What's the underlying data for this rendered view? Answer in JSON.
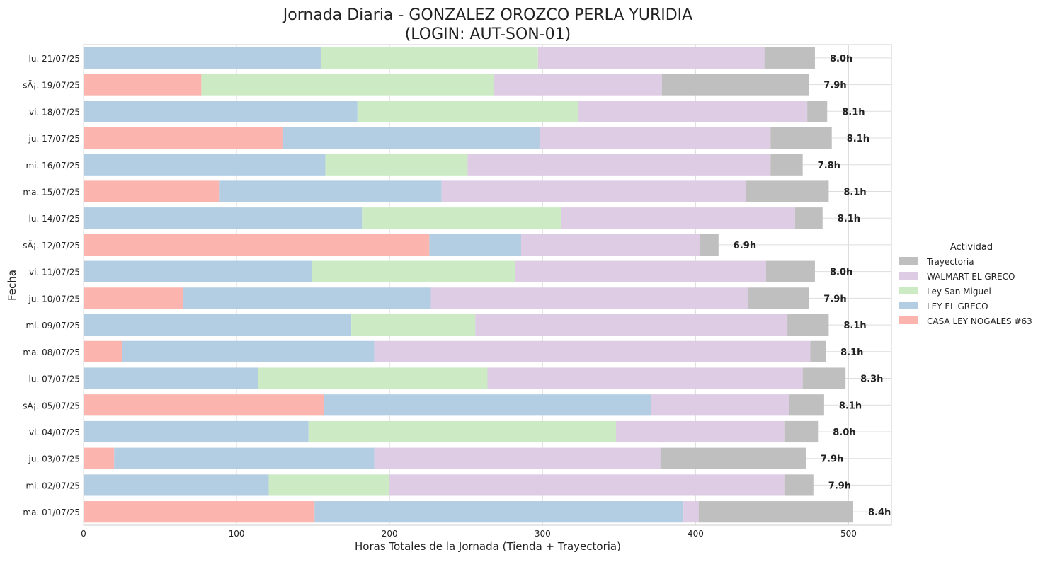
{
  "chart_data": {
    "type": "bar",
    "orientation": "horizontal",
    "stacked": true,
    "title_line1": "Jornada Diaria - GONZALEZ OROZCO PERLA YURIDIA",
    "title_line2": "(LOGIN: AUT-SON-01)",
    "xlabel": "Horas Totales de la Jornada (Tienda + Trayectoria)",
    "ylabel": "Fecha",
    "xlim": [
      0,
      528
    ],
    "xticks": [
      0,
      100,
      200,
      300,
      400,
      500
    ],
    "grid": true,
    "legend": {
      "title": "Actividad",
      "placement": "center-right outside",
      "items": [
        "Trayectoria",
        "WALMART EL GRECO",
        "Ley San Miguel",
        "LEY EL GRECO",
        "CASA LEY NOGALES #63"
      ]
    },
    "colors": {
      "CASA LEY NOGALES #63": "#fbb4ae",
      "LEY EL GRECO": "#b3cde3",
      "Ley San Miguel": "#ccebc5",
      "WALMART EL GRECO": "#decbe4",
      "Trayectoria": "#bfbfbf"
    },
    "series_order": [
      "CASA LEY NOGALES #63",
      "LEY EL GRECO",
      "Ley San Miguel",
      "WALMART EL GRECO",
      "Trayectoria"
    ],
    "rows": [
      {
        "date": "lu. 21/07/25",
        "CASA LEY NOGALES #63": 0,
        "LEY EL GRECO": 155,
        "Ley San Miguel": 142,
        "WALMART EL GRECO": 148,
        "Trayectoria": 33,
        "label": "8.0h"
      },
      {
        "date": "sÃ¡. 19/07/25",
        "CASA LEY NOGALES #63": 77,
        "LEY EL GRECO": 0,
        "Ley San Miguel": 191,
        "WALMART EL GRECO": 110,
        "Trayectoria": 96,
        "label": "7.9h"
      },
      {
        "date": "vi. 18/07/25",
        "CASA LEY NOGALES #63": 0,
        "LEY EL GRECO": 179,
        "Ley San Miguel": 144,
        "WALMART EL GRECO": 150,
        "Trayectoria": 13,
        "label": "8.1h"
      },
      {
        "date": "ju. 17/07/25",
        "CASA LEY NOGALES #63": 130,
        "LEY EL GRECO": 168,
        "Ley San Miguel": 0,
        "WALMART EL GRECO": 151,
        "Trayectoria": 40,
        "label": "8.1h"
      },
      {
        "date": "mi. 16/07/25",
        "CASA LEY NOGALES #63": 0,
        "LEY EL GRECO": 158,
        "Ley San Miguel": 93,
        "WALMART EL GRECO": 198,
        "Trayectoria": 21,
        "label": "7.8h"
      },
      {
        "date": "ma. 15/07/25",
        "CASA LEY NOGALES #63": 89,
        "LEY EL GRECO": 145,
        "Ley San Miguel": 0,
        "WALMART EL GRECO": 199,
        "Trayectoria": 54,
        "label": "8.1h"
      },
      {
        "date": "lu. 14/07/25",
        "CASA LEY NOGALES #63": 0,
        "LEY EL GRECO": 182,
        "Ley San Miguel": 130,
        "WALMART EL GRECO": 153,
        "Trayectoria": 18,
        "label": "8.1h"
      },
      {
        "date": "sÃ¡. 12/07/25",
        "CASA LEY NOGALES #63": 226,
        "LEY EL GRECO": 60,
        "Ley San Miguel": 0,
        "WALMART EL GRECO": 117,
        "Trayectoria": 12,
        "label": "6.9h"
      },
      {
        "date": "vi. 11/07/25",
        "CASA LEY NOGALES #63": 0,
        "LEY EL GRECO": 149,
        "Ley San Miguel": 133,
        "WALMART EL GRECO": 164,
        "Trayectoria": 32,
        "label": "8.0h"
      },
      {
        "date": "ju. 10/07/25",
        "CASA LEY NOGALES #63": 65,
        "LEY EL GRECO": 162,
        "Ley San Miguel": 0,
        "WALMART EL GRECO": 207,
        "Trayectoria": 40,
        "label": "7.9h"
      },
      {
        "date": "mi. 09/07/25",
        "CASA LEY NOGALES #63": 0,
        "LEY EL GRECO": 175,
        "Ley San Miguel": 81,
        "WALMART EL GRECO": 204,
        "Trayectoria": 27,
        "label": "8.1h"
      },
      {
        "date": "ma. 08/07/25",
        "CASA LEY NOGALES #63": 25,
        "LEY EL GRECO": 165,
        "Ley San Miguel": 0,
        "WALMART EL GRECO": 285,
        "Trayectoria": 10,
        "label": "8.1h"
      },
      {
        "date": "lu. 07/07/25",
        "CASA LEY NOGALES #63": 0,
        "LEY EL GRECO": 114,
        "Ley San Miguel": 150,
        "WALMART EL GRECO": 206,
        "Trayectoria": 28,
        "label": "8.3h"
      },
      {
        "date": "sÃ¡. 05/07/25",
        "CASA LEY NOGALES #63": 157,
        "LEY EL GRECO": 214,
        "Ley San Miguel": 0,
        "WALMART EL GRECO": 90,
        "Trayectoria": 23,
        "label": "8.1h"
      },
      {
        "date": "vi. 04/07/25",
        "CASA LEY NOGALES #63": 0,
        "LEY EL GRECO": 147,
        "Ley San Miguel": 201,
        "WALMART EL GRECO": 110,
        "Trayectoria": 22,
        "label": "8.0h"
      },
      {
        "date": "ju. 03/07/25",
        "CASA LEY NOGALES #63": 20,
        "LEY EL GRECO": 170,
        "Ley San Miguel": 0,
        "WALMART EL GRECO": 187,
        "Trayectoria": 95,
        "label": "7.9h"
      },
      {
        "date": "mi. 02/07/25",
        "CASA LEY NOGALES #63": 0,
        "LEY EL GRECO": 121,
        "Ley San Miguel": 79,
        "WALMART EL GRECO": 258,
        "Trayectoria": 19,
        "label": "7.9h"
      },
      {
        "date": "ma. 01/07/25",
        "CASA LEY NOGALES #63": 151,
        "LEY EL GRECO": 241,
        "Ley San Miguel": 0,
        "WALMART EL GRECO": 10,
        "Trayectoria": 101,
        "label": "8.4h"
      }
    ]
  }
}
